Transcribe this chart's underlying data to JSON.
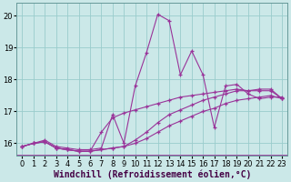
{
  "bg_color": "#cbe8e8",
  "line_color": "#993399",
  "grid_color": "#99cccc",
  "xlabel": "Windchill (Refroidissement éolien,°C)",
  "xlabel_fontsize": 7,
  "tick_fontsize": 6,
  "xlim": [
    -0.5,
    23.5
  ],
  "ylim": [
    15.6,
    20.4
  ],
  "xticks": [
    0,
    1,
    2,
    3,
    4,
    5,
    6,
    7,
    8,
    9,
    10,
    11,
    12,
    13,
    14,
    15,
    16,
    17,
    18,
    19,
    20,
    21,
    22,
    23
  ],
  "yticks": [
    16,
    17,
    18,
    19,
    20
  ],
  "series": [
    [
      15.9,
      16.0,
      16.1,
      15.9,
      15.85,
      15.8,
      15.8,
      15.85,
      16.9,
      16.0,
      17.8,
      18.85,
      20.05,
      19.85,
      18.15,
      18.9,
      18.15,
      16.5,
      17.8,
      17.85,
      17.55,
      17.4,
      17.45,
      17.45
    ],
    [
      15.9,
      16.0,
      16.05,
      15.85,
      15.8,
      15.75,
      15.75,
      15.8,
      15.85,
      15.9,
      16.1,
      16.35,
      16.65,
      16.9,
      17.05,
      17.2,
      17.35,
      17.45,
      17.55,
      17.65,
      17.65,
      17.7,
      17.7,
      17.4
    ],
    [
      15.9,
      16.0,
      16.05,
      15.85,
      15.8,
      15.75,
      15.75,
      16.35,
      16.8,
      16.95,
      17.05,
      17.15,
      17.25,
      17.35,
      17.45,
      17.5,
      17.55,
      17.6,
      17.65,
      17.7,
      17.65,
      17.65,
      17.65,
      17.4
    ],
    [
      15.9,
      16.0,
      16.05,
      15.85,
      15.8,
      15.75,
      15.75,
      15.8,
      15.85,
      15.9,
      16.0,
      16.15,
      16.35,
      16.55,
      16.7,
      16.85,
      17.0,
      17.1,
      17.25,
      17.35,
      17.4,
      17.45,
      17.5,
      17.4
    ]
  ]
}
